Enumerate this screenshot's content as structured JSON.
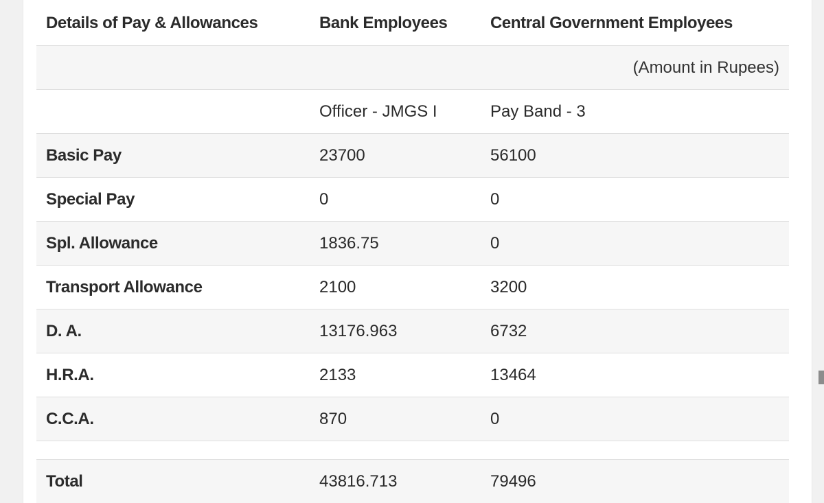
{
  "table": {
    "headers": [
      "Details of Pay & Allowances",
      "Bank Employees",
      "Central Government Employees"
    ],
    "unit_note": "(Amount in Rupees)",
    "subheader": {
      "label": "",
      "bank": "Officer - JMGS I",
      "central": "Pay Band - 3"
    },
    "rows": [
      {
        "label": "Basic Pay",
        "bank": "23700",
        "central": "56100"
      },
      {
        "label": "Special Pay",
        "bank": "0",
        "central": "0"
      },
      {
        "label": "Spl. Allowance",
        "bank": "1836.75",
        "central": "0"
      },
      {
        "label": "Transport Allowance",
        "bank": "2100",
        "central": "3200"
      },
      {
        "label": "D. A.",
        "bank": "13176.963",
        "central": "6732"
      },
      {
        "label": "H.R.A.",
        "bank": "2133",
        "central": "13464"
      },
      {
        "label": "C.C.A.",
        "bank": "870",
        "central": "0"
      }
    ],
    "total": {
      "label": "Total",
      "bank": "43816.713",
      "central": "79496"
    }
  }
}
